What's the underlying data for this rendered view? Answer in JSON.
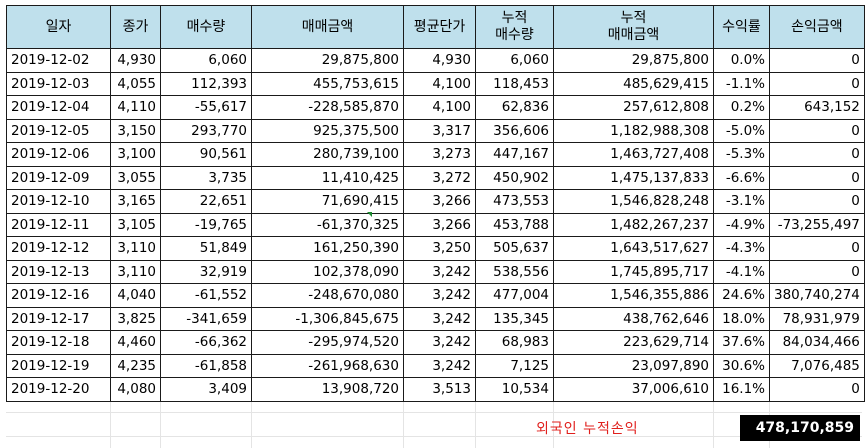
{
  "headers": {
    "date": "일자",
    "close": "종가",
    "net_buy": "매수량",
    "trade_amount": "매매금액",
    "avg_price": "평균단가",
    "cum_qty_1": "누적",
    "cum_qty_2": "매수량",
    "cum_amount_1": "누적",
    "cum_amount_2": "매매금액",
    "return_rate": "수익률",
    "pnl": "손익금액"
  },
  "rows": [
    {
      "date": "2019-12-02",
      "close": "4,930",
      "qty": "6,060",
      "amount": "29,875,800",
      "avg": "4,930",
      "cum_qty": "6,060",
      "cum_amount": "29,875,800",
      "rate": "0.0%",
      "pnl": "0"
    },
    {
      "date": "2019-12-03",
      "close": "4,055",
      "qty": "112,393",
      "amount": "455,753,615",
      "avg": "4,100",
      "cum_qty": "118,453",
      "cum_amount": "485,629,415",
      "rate": "-1.1%",
      "pnl": "0"
    },
    {
      "date": "2019-12-04",
      "close": "4,110",
      "qty": "-55,617",
      "amount": "-228,585,870",
      "avg": "4,100",
      "cum_qty": "62,836",
      "cum_amount": "257,612,808",
      "rate": "0.2%",
      "pnl": "643,152"
    },
    {
      "date": "2019-12-05",
      "close": "3,150",
      "qty": "293,770",
      "amount": "925,375,500",
      "avg": "3,317",
      "cum_qty": "356,606",
      "cum_amount": "1,182,988,308",
      "rate": "-5.0%",
      "pnl": "0"
    },
    {
      "date": "2019-12-06",
      "close": "3,100",
      "qty": "90,561",
      "amount": "280,739,100",
      "avg": "3,273",
      "cum_qty": "447,167",
      "cum_amount": "1,463,727,408",
      "rate": "-5.3%",
      "pnl": "0"
    },
    {
      "date": "2019-12-09",
      "close": "3,055",
      "qty": "3,735",
      "amount": "11,410,425",
      "avg": "3,272",
      "cum_qty": "450,902",
      "cum_amount": "1,475,137,833",
      "rate": "-6.6%",
      "pnl": "0"
    },
    {
      "date": "2019-12-10",
      "close": "3,165",
      "qty": "22,651",
      "amount": "71,690,415",
      "avg": "3,266",
      "cum_qty": "473,553",
      "cum_amount": "1,546,828,248",
      "rate": "-3.1%",
      "pnl": "0"
    },
    {
      "date": "2019-12-11",
      "close": "3,105",
      "qty": "-19,765",
      "amount": "-61,370,325",
      "avg": "3,266",
      "cum_qty": "453,788",
      "cum_amount": "1,482,267,237",
      "rate": "-4.9%",
      "pnl": "-73,255,497"
    },
    {
      "date": "2019-12-12",
      "close": "3,110",
      "qty": "51,849",
      "amount": "161,250,390",
      "avg": "3,250",
      "cum_qty": "505,637",
      "cum_amount": "1,643,517,627",
      "rate": "-4.3%",
      "pnl": "0"
    },
    {
      "date": "2019-12-13",
      "close": "3,110",
      "qty": "32,919",
      "amount": "102,378,090",
      "avg": "3,242",
      "cum_qty": "538,556",
      "cum_amount": "1,745,895,717",
      "rate": "-4.1%",
      "pnl": "0"
    },
    {
      "date": "2019-12-16",
      "close": "4,040",
      "qty": "-61,552",
      "amount": "-248,670,080",
      "avg": "3,242",
      "cum_qty": "477,004",
      "cum_amount": "1,546,355,886",
      "rate": "24.6%",
      "pnl": "380,740,274"
    },
    {
      "date": "2019-12-17",
      "close": "3,825",
      "qty": "-341,659",
      "amount": "-1,306,845,675",
      "avg": "3,242",
      "cum_qty": "135,345",
      "cum_amount": "438,762,646",
      "rate": "18.0%",
      "pnl": "78,931,979"
    },
    {
      "date": "2019-12-18",
      "close": "4,460",
      "qty": "-66,362",
      "amount": "-295,974,520",
      "avg": "3,242",
      "cum_qty": "68,983",
      "cum_amount": "223,629,714",
      "rate": "37.6%",
      "pnl": "84,034,466"
    },
    {
      "date": "2019-12-19",
      "close": "4,235",
      "qty": "-61,858",
      "amount": "-261,968,630",
      "avg": "3,242",
      "cum_qty": "7,125",
      "cum_amount": "23,097,890",
      "rate": "30.6%",
      "pnl": "7,076,485"
    },
    {
      "date": "2019-12-20",
      "close": "4,080",
      "qty": "3,409",
      "amount": "13,908,720",
      "avg": "3,513",
      "cum_qty": "10,534",
      "cum_amount": "37,006,610",
      "rate": "16.1%",
      "pnl": "0"
    }
  ],
  "summary": {
    "label": "외국인 누적손익",
    "value": "478,170,859"
  },
  "colors": {
    "header_bg": "#bfe0ec",
    "negative": "#ff1a1a",
    "summary_label": "#e0201d",
    "summary_bg": "#000000"
  }
}
